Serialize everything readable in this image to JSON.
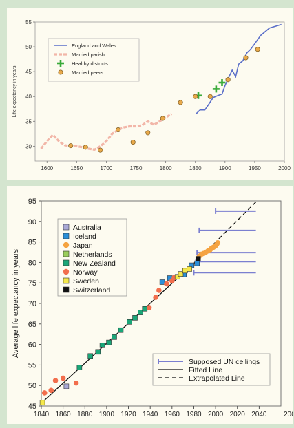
{
  "chart_data": [
    {
      "type": "line",
      "title": "",
      "xlabel": "",
      "ylabel": "Life expectancy in years",
      "xlim": [
        1580,
        2000
      ],
      "ylim": [
        27,
        55
      ],
      "xticks": [
        1600,
        1650,
        1700,
        1750,
        1800,
        1850,
        1900,
        1950,
        2000
      ],
      "yticks": [
        30,
        35,
        40,
        45,
        50,
        55
      ],
      "legend_position": "top-left",
      "series": [
        {
          "name": "England and Wales",
          "style": "line",
          "color": "#5b6fc9",
          "points": [
            [
              1851,
              36.5
            ],
            [
              1858,
              37.3
            ],
            [
              1866,
              37.3
            ],
            [
              1873,
              38.5
            ],
            [
              1880,
              39.8
            ],
            [
              1888,
              40.2
            ],
            [
              1895,
              40.5
            ],
            [
              1900,
              42.2
            ],
            [
              1906,
              43.8
            ],
            [
              1912,
              45.3
            ],
            [
              1918,
              44.0
            ],
            [
              1923,
              46.5
            ],
            [
              1930,
              47.2
            ],
            [
              1937,
              48.8
            ],
            [
              1943,
              49.5
            ],
            [
              1950,
              50.6
            ],
            [
              1960,
              52.3
            ],
            [
              1975,
              53.8
            ],
            [
              1995,
              54.5
            ]
          ]
        },
        {
          "name": "Married parish",
          "style": "dashed-thick",
          "color": "#f2b6a8",
          "points": [
            [
              1590,
              29.5
            ],
            [
              1600,
              31.0
            ],
            [
              1610,
              32.3
            ],
            [
              1620,
              31.0
            ],
            [
              1630,
              30.2
            ],
            [
              1640,
              30.0
            ],
            [
              1650,
              30.0
            ],
            [
              1660,
              29.8
            ],
            [
              1670,
              29.5
            ],
            [
              1680,
              29.3
            ],
            [
              1690,
              30.0
            ],
            [
              1700,
              31.0
            ],
            [
              1710,
              32.5
            ],
            [
              1720,
              33.3
            ],
            [
              1730,
              33.8
            ],
            [
              1740,
              34.0
            ],
            [
              1750,
              34.0
            ],
            [
              1760,
              34.2
            ],
            [
              1770,
              35.0
            ],
            [
              1780,
              34.3
            ],
            [
              1790,
              35.0
            ],
            [
              1800,
              35.8
            ],
            [
              1810,
              36.5
            ]
          ]
        },
        {
          "name": "Healthy districts",
          "style": "plus",
          "color": "#3aab3a",
          "points": [
            [
              1855,
              40.2
            ],
            [
              1885,
              41.5
            ],
            [
              1895,
              42.8
            ]
          ]
        },
        {
          "name": "Married peers",
          "style": "circle",
          "color": "#e8a94b",
          "points": [
            [
              1640,
              30.1
            ],
            [
              1665,
              29.8
            ],
            [
              1690,
              29.2
            ],
            [
              1720,
              33.3
            ],
            [
              1745,
              30.8
            ],
            [
              1770,
              32.7
            ],
            [
              1795,
              35.6
            ],
            [
              1825,
              38.8
            ],
            [
              1850,
              40.0
            ],
            [
              1875,
              40.0
            ],
            [
              1905,
              43.4
            ],
            [
              1935,
              47.8
            ],
            [
              1955,
              49.5
            ]
          ]
        }
      ]
    },
    {
      "type": "scatter",
      "title": "",
      "xlabel": "",
      "ylabel": "Average life expectancy in years",
      "xlim": [
        1840,
        2060
      ],
      "ylim": [
        45,
        95
      ],
      "xticks": [
        1840,
        1860,
        1880,
        1900,
        1920,
        1940,
        1960,
        1980,
        2000,
        2020,
        2040
      ],
      "xtick_last_label": "206",
      "yticks": [
        45,
        50,
        55,
        60,
        65,
        70,
        75,
        80,
        85,
        90,
        95
      ],
      "legend_position": "top-left",
      "countries": [
        {
          "name": "Australia",
          "color": "#a9a9d6",
          "shape": "square",
          "points": [
            [
              1863,
              49.8
            ]
          ]
        },
        {
          "name": "Iceland",
          "color": "#2b8fd8",
          "shape": "square",
          "points": [
            [
              1951,
              75.2
            ],
            [
              1958,
              76.2
            ],
            [
              1971,
              77.1
            ],
            [
              1978,
              79.3
            ],
            [
              1983,
              79.8
            ]
          ]
        },
        {
          "name": "Japan",
          "color": "#f5a340",
          "shape": "circle",
          "points": [
            [
              1985,
              81.5
            ],
            [
              1987,
              82.0
            ],
            [
              1989,
              82.2
            ],
            [
              1991,
              82.5
            ],
            [
              1993,
              82.8
            ],
            [
              1995,
              83.1
            ],
            [
              1996,
              83.4
            ],
            [
              1998,
              83.7
            ],
            [
              2000,
              84.1
            ],
            [
              2001,
              84.4
            ],
            [
              2002,
              84.8
            ]
          ]
        },
        {
          "name": "Netherlands",
          "color": "#9acd5b",
          "shape": "square",
          "points": []
        },
        {
          "name": "New Zealand",
          "color": "#1aa678",
          "shape": "square",
          "points": [
            [
              1875,
              54.4
            ],
            [
              1885,
              57.2
            ],
            [
              1892,
              58.2
            ],
            [
              1896,
              59.8
            ],
            [
              1902,
              60.5
            ],
            [
              1907,
              61.8
            ],
            [
              1913,
              63.5
            ],
            [
              1921,
              65.5
            ],
            [
              1926,
              66.5
            ],
            [
              1931,
              67.8
            ],
            [
              1935,
              68.7
            ]
          ]
        },
        {
          "name": "Norway",
          "color": "#f26e4d",
          "shape": "circle",
          "points": [
            [
              1843,
              48.2
            ],
            [
              1849,
              48.8
            ],
            [
              1853,
              51.2
            ],
            [
              1860,
              51.8
            ],
            [
              1872,
              50.6
            ],
            [
              1939,
              69.0
            ],
            [
              1945,
              71.5
            ],
            [
              1948,
              73.2
            ],
            [
              1955,
              74.8
            ],
            [
              1960,
              75.5
            ],
            [
              1962,
              76.3
            ]
          ]
        },
        {
          "name": "Sweden",
          "color": "#f5e84a",
          "shape": "square",
          "points": [
            [
              1841,
              45.8
            ],
            [
              1965,
              76.5
            ],
            [
              1968,
              77.2
            ],
            [
              1972,
              78.0
            ],
            [
              1976,
              78.4
            ]
          ]
        },
        {
          "name": "Switzerland",
          "color": "#111111",
          "shape": "square",
          "points": [
            [
              1984,
              80.9
            ]
          ]
        }
      ],
      "un_ceilings": [
        {
          "x_start": 2000,
          "x_end": 2037,
          "y": 92.5
        },
        {
          "x_start": 1985,
          "x_end": 2037,
          "y": 87.8
        },
        {
          "x_start": 1983,
          "x_end": 2037,
          "y": 82.4
        },
        {
          "x_start": 1982,
          "x_end": 2037,
          "y": 80.2
        },
        {
          "x_start": 1980,
          "x_end": 2037,
          "y": 77.5
        }
      ],
      "fitted_line": {
        "from": [
          1840,
          45.7
        ],
        "to": [
          1985,
          81.0
        ]
      },
      "extrapolated_line": {
        "from": [
          1985,
          81.0
        ],
        "to": [
          2038,
          95.0
        ]
      },
      "line_legend": [
        "Supposed UN ceilings",
        "Fitted Line",
        "Extrapolated Line"
      ]
    }
  ]
}
